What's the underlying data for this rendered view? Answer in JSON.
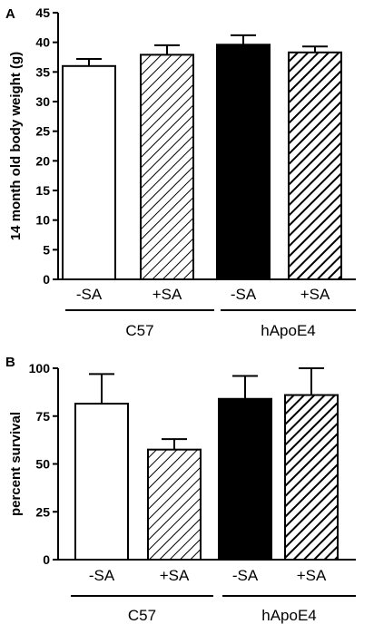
{
  "chart_data": [
    {
      "panel": "A",
      "type": "bar",
      "ylabel": "14 month old body weight (g)",
      "ylim": [
        0,
        45
      ],
      "yticks": [
        0,
        5,
        10,
        15,
        20,
        25,
        30,
        35,
        40,
        45
      ],
      "categories": [
        "-SA",
        "+SA",
        "-SA",
        "+SA"
      ],
      "groups": [
        {
          "label": "C57",
          "categories": [
            0,
            1
          ]
        },
        {
          "label": "hApoE4",
          "categories": [
            2,
            3
          ]
        }
      ],
      "values": [
        36.0,
        37.9,
        39.6,
        38.3
      ],
      "errors": [
        1.2,
        1.6,
        1.6,
        1.0
      ],
      "fills": [
        "open",
        "hatched",
        "solid",
        "hatched-bold"
      ]
    },
    {
      "panel": "B",
      "type": "bar",
      "ylabel": "percent survival",
      "ylim": [
        0,
        100
      ],
      "yticks": [
        0,
        25,
        50,
        75,
        100
      ],
      "categories": [
        "-SA",
        "+SA",
        "-SA",
        "+SA"
      ],
      "groups": [
        {
          "label": "C57",
          "categories": [
            0,
            1
          ]
        },
        {
          "label": "hApoE4",
          "categories": [
            2,
            3
          ]
        }
      ],
      "values": [
        81.5,
        57.5,
        84.0,
        86.0
      ],
      "errors": [
        15.5,
        5.5,
        12.0,
        14.0
      ],
      "fills": [
        "open",
        "hatched",
        "solid",
        "hatched-bold"
      ]
    }
  ]
}
